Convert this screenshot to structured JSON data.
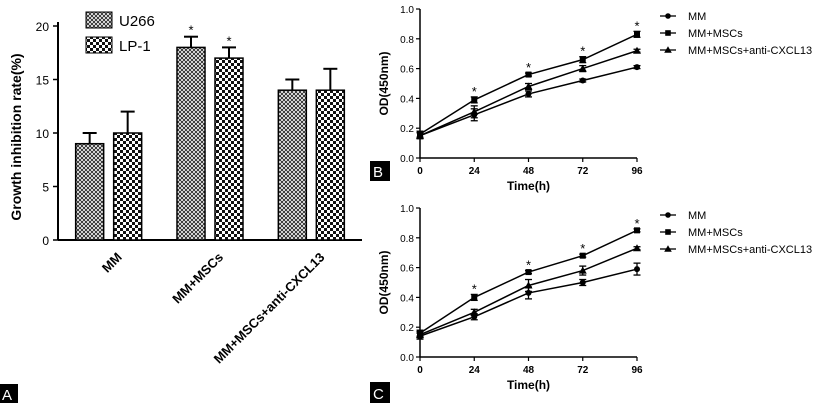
{
  "chart_data": [
    {
      "panel": "A",
      "type": "bar",
      "ylabel": "Growth inhibition rate(%)",
      "ylim": [
        0,
        20
      ],
      "yticks": [
        0,
        5,
        10,
        15,
        20
      ],
      "categories": [
        "MM",
        "MM+MSCs",
        "MM+MSCs+anti-CXCL13"
      ],
      "series": [
        {
          "name": "U266",
          "values": [
            9,
            18,
            14
          ],
          "errors": [
            1,
            1,
            1
          ],
          "pattern": "hatch"
        },
        {
          "name": "LP-1",
          "values": [
            10,
            17,
            14
          ],
          "errors": [
            2,
            1,
            2
          ],
          "pattern": "checker"
        }
      ],
      "significance": [
        [
          false,
          false
        ],
        [
          true,
          true
        ],
        [
          false,
          false
        ]
      ],
      "legend": "top-left"
    },
    {
      "panel": "B",
      "type": "line",
      "xlabel": "Time(h)",
      "ylabel": "OD(450nm)",
      "x": [
        0,
        24,
        48,
        72,
        96
      ],
      "xlim": [
        0,
        96
      ],
      "ylim": [
        0,
        1.0
      ],
      "yticks": [
        "0.0",
        "0.2",
        "0.4",
        "0.6",
        "0.8",
        "1.0"
      ],
      "series": [
        {
          "name": "MM",
          "marker": "circle",
          "values": [
            0.15,
            0.29,
            0.43,
            0.52,
            0.61
          ],
          "errors": [
            0.02,
            0.04,
            0.02,
            0.01,
            0.01
          ]
        },
        {
          "name": "MM+MSCs",
          "marker": "square",
          "values": [
            0.16,
            0.39,
            0.56,
            0.66,
            0.83
          ],
          "errors": [
            0.02,
            0.02,
            0.01,
            0.02,
            0.02
          ]
        },
        {
          "name": "MM+MSCs+anti-CXCL13",
          "marker": "triangle",
          "values": [
            0.15,
            0.31,
            0.48,
            0.6,
            0.72
          ],
          "errors": [
            0.02,
            0.04,
            0.02,
            0.02,
            0.01
          ]
        }
      ],
      "significance": [
        false,
        true,
        true,
        true,
        true
      ],
      "legend": "right"
    },
    {
      "panel": "C",
      "type": "line",
      "xlabel": "Time(h)",
      "ylabel": "OD(450nm)",
      "x": [
        0,
        24,
        48,
        72,
        96
      ],
      "xlim": [
        0,
        96
      ],
      "ylim": [
        0,
        1.0
      ],
      "yticks": [
        "0.0",
        "0.2",
        "0.4",
        "0.6",
        "0.8",
        "1.0"
      ],
      "series": [
        {
          "name": "MM",
          "marker": "circle",
          "values": [
            0.14,
            0.27,
            0.43,
            0.5,
            0.59
          ],
          "errors": [
            0.02,
            0.02,
            0.04,
            0.02,
            0.04
          ]
        },
        {
          "name": "MM+MSCs",
          "marker": "square",
          "values": [
            0.16,
            0.4,
            0.57,
            0.68,
            0.85
          ],
          "errors": [
            0.02,
            0.02,
            0.01,
            0.01,
            0.01
          ]
        },
        {
          "name": "MM+MSCs+anti-CXCL13",
          "marker": "triangle",
          "values": [
            0.15,
            0.3,
            0.48,
            0.58,
            0.73
          ],
          "errors": [
            0.02,
            0.02,
            0.04,
            0.03,
            0.01
          ]
        }
      ],
      "significance": [
        false,
        true,
        true,
        true,
        true
      ],
      "legend": "right"
    }
  ],
  "panel_labels": {
    "a": "A",
    "b": "B",
    "c": "C"
  },
  "colors": {
    "ink": "#000000",
    "label_box": "#000000",
    "label_text": "#ffffff"
  },
  "significance_marker": "*"
}
